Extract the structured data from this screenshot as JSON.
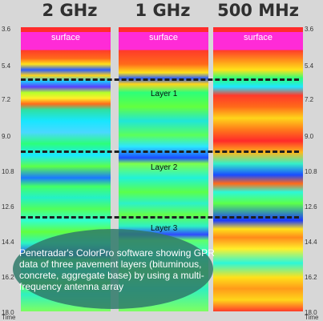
{
  "frequencies": [
    "2 GHz",
    "1 GHz",
    "500 MHz"
  ],
  "axis_ticks": [
    "3.6",
    "5.4",
    "7.2",
    "9.0",
    "10.8",
    "12.6",
    "14.4",
    "16.2",
    "18.0"
  ],
  "axis_label": "Time",
  "surface_label": "surface",
  "layers": [
    "Layer 1",
    "Layer 2",
    "Layer 3"
  ],
  "caption": "Penetradar's ColorPro software showing GPR data of three pavement layers (bituminous, concrete, aggregate base) by using a multi-frequency antenna array",
  "colors": {
    "surface_magenta": "#ff2bd7",
    "top_red": "#ff2c2c",
    "caption_bg": "#2f7a6a"
  }
}
